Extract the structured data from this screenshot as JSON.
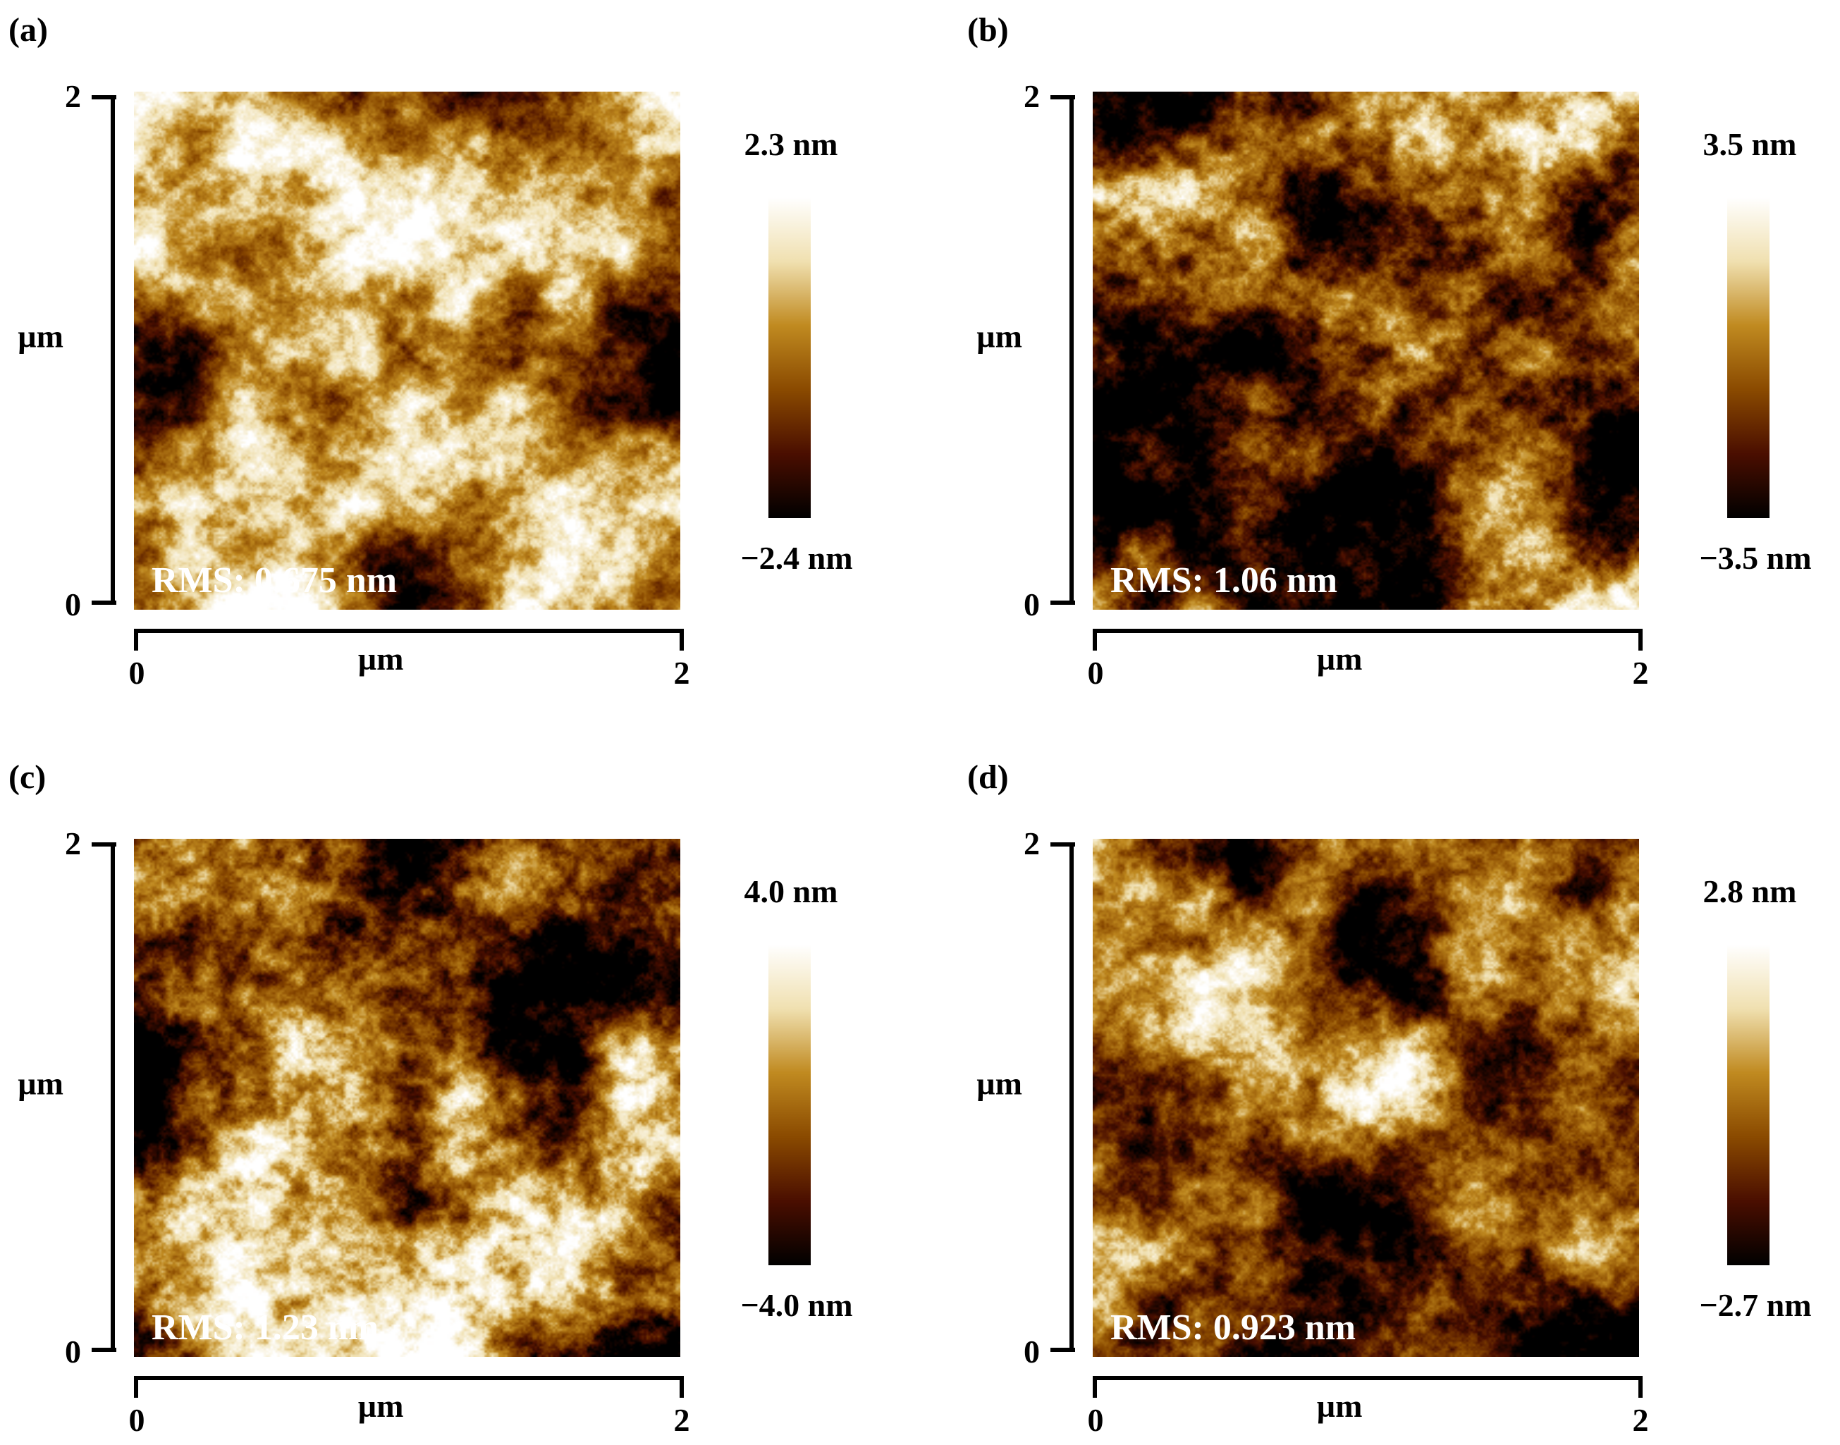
{
  "figure": {
    "panels": [
      {
        "label": "(a)",
        "x_axis": {
          "label": "µm",
          "tick_min": "0",
          "tick_max": "2"
        },
        "y_axis": {
          "label": "µm",
          "tick_min": "0",
          "tick_max": "2"
        },
        "colorbar": {
          "max": "2.3 nm",
          "min": "−2.4 nm"
        },
        "rms": "RMS: 0.675 nm",
        "texture": {
          "seed": 3,
          "contrast": 1.0,
          "mean": 0.48
        }
      },
      {
        "label": "(b)",
        "x_axis": {
          "label": "µm",
          "tick_min": "0",
          "tick_max": "2"
        },
        "y_axis": {
          "label": "µm",
          "tick_min": "0",
          "tick_max": "2"
        },
        "colorbar": {
          "max": "3.5 nm",
          "min": "−3.5 nm"
        },
        "rms": "RMS: 1.06 nm",
        "texture": {
          "seed": 7,
          "contrast": 1.15,
          "mean": 0.45
        }
      },
      {
        "label": "(c)",
        "x_axis": {
          "label": "µm",
          "tick_min": "0",
          "tick_max": "2"
        },
        "y_axis": {
          "label": "µm",
          "tick_min": "0",
          "tick_max": "2"
        },
        "colorbar": {
          "max": "4.0 nm",
          "min": "−4.0 nm"
        },
        "rms": "RMS: 1.23 nm",
        "texture": {
          "seed": 11,
          "contrast": 1.2,
          "mean": 0.47
        }
      },
      {
        "label": "(d)",
        "x_axis": {
          "label": "µm",
          "tick_min": "0",
          "tick_max": "2"
        },
        "y_axis": {
          "label": "µm",
          "tick_min": "0",
          "tick_max": "2"
        },
        "colorbar": {
          "max": "2.8 nm",
          "min": "−2.7 nm"
        },
        "rms": "RMS: 0.923 nm",
        "texture": {
          "seed": 17,
          "contrast": 1.05,
          "mean": 0.44
        }
      }
    ],
    "colormap": [
      "#000000",
      "#4a0e00",
      "#8a4a00",
      "#c08a20",
      "#f0e0b0",
      "#ffffff"
    ]
  }
}
